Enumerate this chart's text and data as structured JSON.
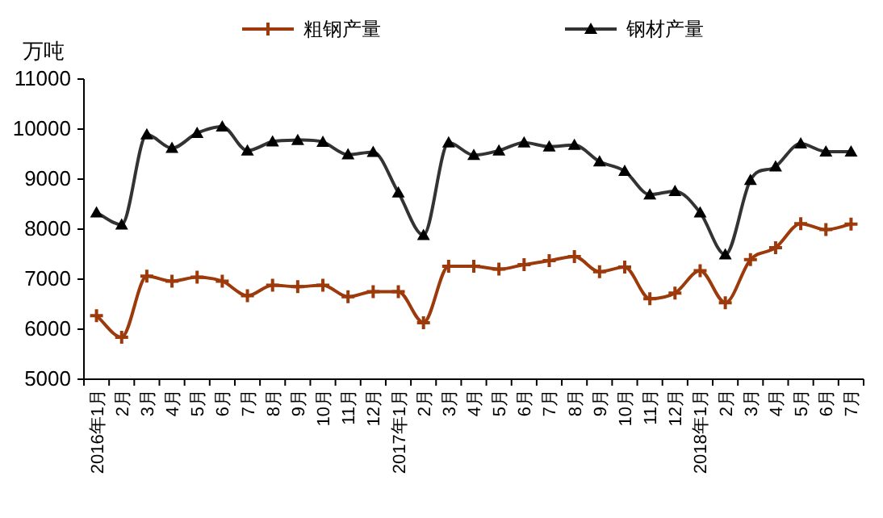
{
  "chart_data": {
    "type": "line",
    "ylabel": "万吨",
    "ylim": [
      5000,
      11000
    ],
    "yticks": [
      5000,
      6000,
      7000,
      8000,
      9000,
      10000,
      11000
    ],
    "grid": false,
    "legend": "top",
    "categories": [
      "2016年1月",
      "2月",
      "3月",
      "4月",
      "5月",
      "6月",
      "7月",
      "8月",
      "9月",
      "10月",
      "11月",
      "12月",
      "2017年1月",
      "2月",
      "3月",
      "4月",
      "5月",
      "6月",
      "7月",
      "8月",
      "9月",
      "10月",
      "11月",
      "12月",
      "2018年1月",
      "2月",
      "3月",
      "4月",
      "5月",
      "6月",
      "7月"
    ],
    "series": [
      {
        "name": "粗钢产量",
        "color": "#9c3a0c",
        "marker": "cross",
        "values": [
          6270,
          5840,
          7060,
          6960,
          7040,
          6960,
          6670,
          6880,
          6850,
          6880,
          6650,
          6750,
          6750,
          6130,
          7260,
          7260,
          7200,
          7290,
          7370,
          7450,
          7150,
          7240,
          6610,
          6720,
          7170,
          6530,
          7390,
          7630,
          8110,
          7990,
          8100
        ]
      },
      {
        "name": "钢材产量",
        "color": "#333333",
        "marker": "triangle",
        "values": [
          8330,
          8090,
          9890,
          9620,
          9920,
          10050,
          9570,
          9750,
          9780,
          9740,
          9490,
          9540,
          8730,
          7880,
          9730,
          9480,
          9570,
          9730,
          9650,
          9680,
          9350,
          9160,
          8690,
          8760,
          8330,
          7490,
          8980,
          9250,
          9710,
          9550,
          9550
        ]
      }
    ]
  }
}
